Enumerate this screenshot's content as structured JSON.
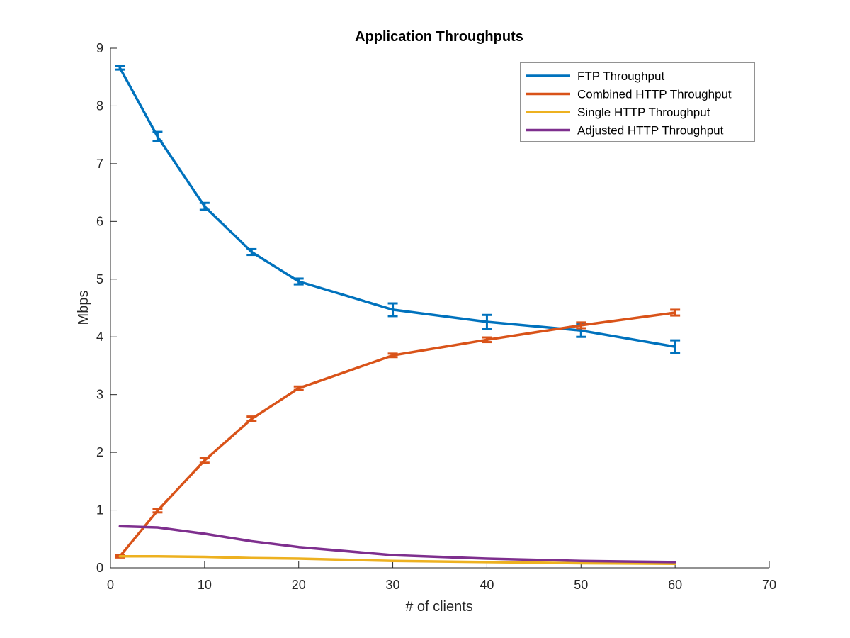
{
  "chart_data": {
    "type": "line",
    "title": "Application Throughputs",
    "xlabel": "# of clients",
    "ylabel": "Mbps",
    "xlim": [
      0,
      70
    ],
    "ylim": [
      0,
      9
    ],
    "xticks": [
      0,
      10,
      20,
      30,
      40,
      50,
      60,
      70
    ],
    "yticks": [
      0,
      1,
      2,
      3,
      4,
      5,
      6,
      7,
      8,
      9
    ],
    "grid": false,
    "legend_position": "top-right",
    "x": [
      1,
      5,
      10,
      15,
      20,
      30,
      40,
      50,
      60
    ],
    "series": [
      {
        "name": "FTP Throughput",
        "color": "#0072BD",
        "values": [
          8.66,
          7.47,
          6.26,
          5.47,
          4.96,
          4.47,
          4.26,
          4.11,
          3.83
        ],
        "errors": [
          0.03,
          0.08,
          0.06,
          0.05,
          0.05,
          0.11,
          0.12,
          0.11,
          0.11
        ]
      },
      {
        "name": "Combined HTTP Throughput",
        "color": "#D95319",
        "values": [
          0.2,
          0.99,
          1.86,
          2.58,
          3.11,
          3.68,
          3.95,
          4.2,
          4.42
        ],
        "errors": [
          0.02,
          0.03,
          0.04,
          0.04,
          0.03,
          0.03,
          0.04,
          0.05,
          0.05
        ]
      },
      {
        "name": "Single HTTP Throughput",
        "color": "#EDB120",
        "values": [
          0.2,
          0.2,
          0.19,
          0.17,
          0.16,
          0.12,
          0.1,
          0.08,
          0.07
        ]
      },
      {
        "name": "Adjusted HTTP Throughput",
        "color": "#7E2F8E",
        "values": [
          0.72,
          0.7,
          0.59,
          0.46,
          0.36,
          0.22,
          0.16,
          0.12,
          0.1
        ]
      }
    ]
  }
}
